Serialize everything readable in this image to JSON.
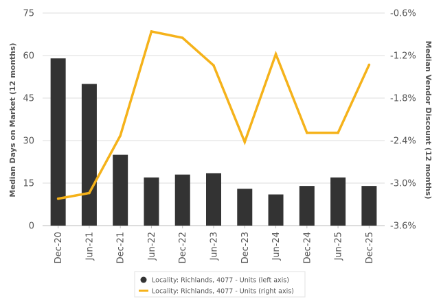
{
  "chart_data": {
    "type": "bar+line",
    "categories": [
      "Dec-20",
      "Jun-21",
      "Dec-21",
      "Jun-22",
      "Dec-22",
      "Jun-23",
      "Dec-23",
      "Jun-24",
      "Dec-24",
      "Jun-25",
      "Dec-25"
    ],
    "series": [
      {
        "name": "Locality: Richlands, 4077 - Units (left axis)",
        "type": "bar",
        "axis": "left",
        "color": "#333333",
        "values": [
          59,
          50,
          25,
          17,
          18,
          18.5,
          13,
          11,
          14,
          17,
          14
        ]
      },
      {
        "name": "Locality: Richlands, 4077 - Units (right axis)",
        "type": "line",
        "axis": "right",
        "color": "#F5B21A",
        "values": [
          -3.22,
          -3.14,
          -2.33,
          -0.86,
          -0.95,
          -1.34,
          -2.42,
          -1.18,
          -2.29,
          -2.29,
          -1.33
        ]
      }
    ],
    "y_left": {
      "label": "Median Days on Market (12 months)",
      "range": [
        0,
        75
      ],
      "ticks": [
        0,
        15,
        30,
        45,
        60,
        75
      ],
      "tick_labels": [
        "0",
        "15",
        "30",
        "45",
        "60",
        "75"
      ]
    },
    "y_right": {
      "label": "Median Vendor Discount (12 months)",
      "range": [
        -3.6,
        -0.6
      ],
      "ticks": [
        -3.6,
        -3.0,
        -2.4,
        -1.8,
        -1.2,
        -0.6
      ],
      "tick_labels": [
        "-3.6%",
        "-3.0%",
        "-2.4%",
        "-1.8%",
        "-1.2%",
        "-0.6%"
      ]
    },
    "grid": true,
    "legend_position": "bottom-center"
  }
}
